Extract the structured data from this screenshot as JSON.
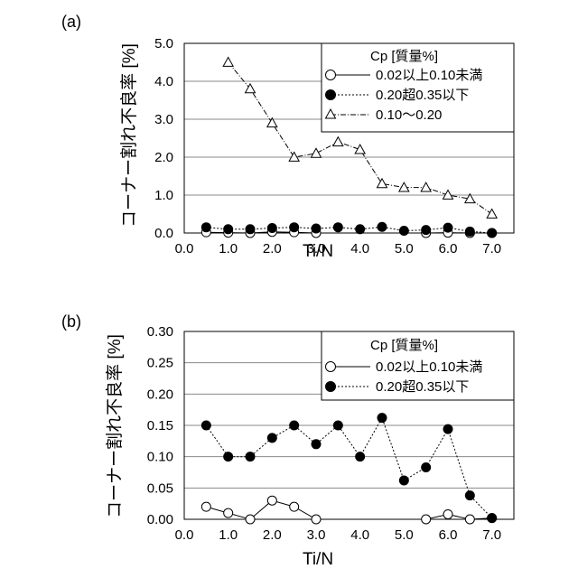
{
  "chart_data": [
    {
      "panel_label": "(a)",
      "type": "line",
      "xlabel": "Ti/N",
      "ylabel": "コーナー割れ不良率 [%]",
      "xlim": [
        0.0,
        7.5
      ],
      "ylim": [
        0.0,
        5.0
      ],
      "x_ticks": [
        "0.0",
        "1.0",
        "2.0",
        "3.0",
        "4.0",
        "5.0",
        "6.0",
        "7.0"
      ],
      "y_ticks": [
        "0.0",
        "1.0",
        "2.0",
        "3.0",
        "4.0",
        "5.0"
      ],
      "grid": true,
      "legend_title": "Cp [質量%]",
      "legend_position": "top-right",
      "series": [
        {
          "name": "0.02以上0.10未満",
          "marker": "open-circle",
          "line": "solid",
          "x": [
            0.5,
            1.0,
            1.5,
            2.0,
            2.5,
            3.0,
            5.5,
            6.0,
            6.5,
            7.0
          ],
          "values": [
            0.02,
            0.01,
            0.0,
            0.03,
            0.02,
            0.0,
            0.0,
            0.01,
            0.0,
            0.0
          ]
        },
        {
          "name": "0.20超0.35以下",
          "marker": "filled-circle",
          "line": "dotted",
          "x": [
            0.5,
            1.0,
            1.5,
            2.0,
            2.5,
            3.0,
            3.5,
            4.0,
            4.5,
            5.0,
            5.5,
            6.0,
            6.5,
            7.0
          ],
          "values": [
            0.15,
            0.1,
            0.1,
            0.13,
            0.15,
            0.12,
            0.15,
            0.1,
            0.16,
            0.06,
            0.08,
            0.14,
            0.04,
            0.0
          ]
        },
        {
          "name": "0.10～0.20",
          "marker": "open-triangle",
          "line": "dash-dot",
          "x": [
            1.0,
            1.5,
            2.0,
            2.5,
            3.0,
            3.5,
            4.0,
            4.5,
            5.0,
            5.5,
            6.0,
            6.5,
            7.0
          ],
          "values": [
            4.5,
            3.8,
            2.9,
            2.0,
            2.1,
            2.4,
            2.2,
            1.3,
            1.2,
            1.2,
            1.0,
            0.9,
            0.5
          ]
        }
      ]
    },
    {
      "panel_label": "(b)",
      "type": "line",
      "xlabel": "Ti/N",
      "ylabel": "コーナー割れ不良率 [%]",
      "xlim": [
        0.0,
        7.5
      ],
      "ylim": [
        0.0,
        0.3
      ],
      "x_ticks": [
        "0.0",
        "1.0",
        "2.0",
        "3.0",
        "4.0",
        "5.0",
        "6.0",
        "7.0"
      ],
      "y_ticks": [
        "0.00",
        "0.05",
        "0.10",
        "0.15",
        "0.20",
        "0.25",
        "0.30"
      ],
      "grid": true,
      "legend_title": "Cp [質量%]",
      "legend_position": "top-right",
      "series": [
        {
          "name": "0.02以上0.10未満",
          "marker": "open-circle",
          "line": "solid",
          "x": [
            0.5,
            1.0,
            1.5,
            2.0,
            2.5,
            3.0,
            5.5,
            6.0,
            6.5,
            7.0
          ],
          "values": [
            0.02,
            0.01,
            0.0,
            0.03,
            0.02,
            0.0,
            0.0,
            0.008,
            0.0,
            0.002
          ]
        },
        {
          "name": "0.20超0.35以下",
          "marker": "filled-circle",
          "line": "dotted",
          "x": [
            0.5,
            1.0,
            1.5,
            2.0,
            2.5,
            3.0,
            3.5,
            4.0,
            4.5,
            5.0,
            5.5,
            6.0,
            6.5,
            7.0
          ],
          "values": [
            0.15,
            0.1,
            0.1,
            0.13,
            0.15,
            0.12,
            0.15,
            0.1,
            0.162,
            0.062,
            0.083,
            0.144,
            0.038,
            0.002
          ]
        }
      ]
    }
  ]
}
